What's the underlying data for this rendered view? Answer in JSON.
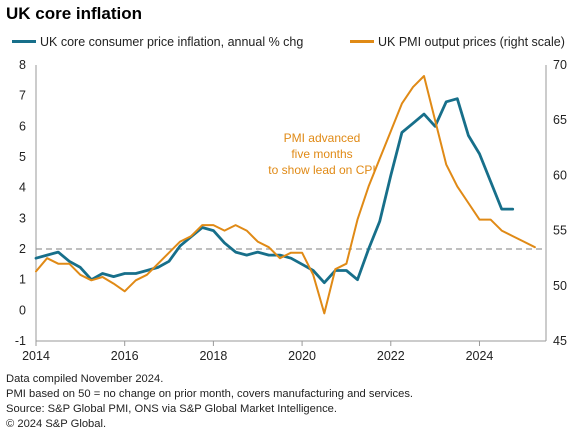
{
  "title": "UK core inflation",
  "legend": {
    "cpi_label": "UK core consumer price inflation, annual % chg",
    "pmi_label": "UK PMI output prices (right scale)"
  },
  "annotation": [
    "PMI advanced",
    "five months",
    "to show lead on CPI"
  ],
  "footer": {
    "line1": "Data compiled November 2024.",
    "line2": "PMI based on 50 = no change on prior month, covers manufacturing and services.",
    "line3": "Source: S&P Global PMI, ONS via S&P Global Market Intelligence.",
    "line4": "© 2024 S&P Global."
  },
  "colors": {
    "cpi": "#176F8A",
    "pmi": "#E08A16",
    "axis": "#999999",
    "reference": "#999999"
  },
  "chart_data": {
    "type": "line",
    "x_ticks": [
      "2014",
      "2016",
      "2018",
      "2020",
      "2022",
      "2024"
    ],
    "left_axis": {
      "ylim": [
        -1,
        8
      ],
      "ticks": [
        "-1",
        "0",
        "1",
        "2",
        "3",
        "4",
        "5",
        "6",
        "7",
        "8"
      ]
    },
    "right_axis": {
      "ylim": [
        45,
        70
      ],
      "ticks": [
        "45",
        "50",
        "55",
        "60",
        "65",
        "70"
      ]
    },
    "reference_line": {
      "axis": "left",
      "value": 2,
      "style": "dashed"
    },
    "series": [
      {
        "name": "UK core consumer price inflation, annual % chg",
        "axis": "left",
        "points": [
          [
            2014.0,
            1.7
          ],
          [
            2014.25,
            1.8
          ],
          [
            2014.5,
            1.9
          ],
          [
            2014.75,
            1.6
          ],
          [
            2015.0,
            1.4
          ],
          [
            2015.25,
            1.0
          ],
          [
            2015.5,
            1.2
          ],
          [
            2015.75,
            1.1
          ],
          [
            2016.0,
            1.2
          ],
          [
            2016.25,
            1.2
          ],
          [
            2016.5,
            1.3
          ],
          [
            2016.75,
            1.4
          ],
          [
            2017.0,
            1.6
          ],
          [
            2017.25,
            2.1
          ],
          [
            2017.5,
            2.4
          ],
          [
            2017.75,
            2.7
          ],
          [
            2018.0,
            2.6
          ],
          [
            2018.25,
            2.2
          ],
          [
            2018.5,
            1.9
          ],
          [
            2018.75,
            1.8
          ],
          [
            2019.0,
            1.9
          ],
          [
            2019.25,
            1.8
          ],
          [
            2019.5,
            1.8
          ],
          [
            2019.75,
            1.7
          ],
          [
            2020.0,
            1.5
          ],
          [
            2020.25,
            1.3
          ],
          [
            2020.5,
            0.9
          ],
          [
            2020.75,
            1.3
          ],
          [
            2021.0,
            1.3
          ],
          [
            2021.25,
            1.0
          ],
          [
            2021.5,
            2.0
          ],
          [
            2021.75,
            2.9
          ],
          [
            2022.0,
            4.4
          ],
          [
            2022.25,
            5.8
          ],
          [
            2022.5,
            6.1
          ],
          [
            2022.75,
            6.4
          ],
          [
            2023.0,
            6.0
          ],
          [
            2023.25,
            6.8
          ],
          [
            2023.5,
            6.9
          ],
          [
            2023.75,
            5.7
          ],
          [
            2024.0,
            5.1
          ],
          [
            2024.25,
            4.2
          ],
          [
            2024.5,
            3.3
          ],
          [
            2024.75,
            3.3
          ]
        ]
      },
      {
        "name": "UK PMI output prices (right scale)",
        "axis": "right",
        "points": [
          [
            2014.0,
            51.3
          ],
          [
            2014.25,
            52.5
          ],
          [
            2014.5,
            52.0
          ],
          [
            2014.75,
            52.0
          ],
          [
            2015.0,
            51.0
          ],
          [
            2015.25,
            50.5
          ],
          [
            2015.5,
            50.8
          ],
          [
            2015.75,
            50.2
          ],
          [
            2016.0,
            49.5
          ],
          [
            2016.25,
            50.5
          ],
          [
            2016.5,
            51.0
          ],
          [
            2016.75,
            52.0
          ],
          [
            2017.0,
            53.0
          ],
          [
            2017.25,
            54.0
          ],
          [
            2017.5,
            54.5
          ],
          [
            2017.75,
            55.5
          ],
          [
            2018.0,
            55.5
          ],
          [
            2018.25,
            55.0
          ],
          [
            2018.5,
            55.5
          ],
          [
            2018.75,
            55.0
          ],
          [
            2019.0,
            54.0
          ],
          [
            2019.25,
            53.5
          ],
          [
            2019.5,
            52.5
          ],
          [
            2019.75,
            53.0
          ],
          [
            2020.0,
            53.0
          ],
          [
            2020.25,
            51.0
          ],
          [
            2020.5,
            47.5
          ],
          [
            2020.75,
            51.5
          ],
          [
            2021.0,
            52.0
          ],
          [
            2021.25,
            56.0
          ],
          [
            2021.5,
            59.0
          ],
          [
            2021.75,
            61.5
          ],
          [
            2022.0,
            64.0
          ],
          [
            2022.25,
            66.5
          ],
          [
            2022.5,
            68.0
          ],
          [
            2022.75,
            69.0
          ],
          [
            2023.0,
            65.0
          ],
          [
            2023.25,
            61.0
          ],
          [
            2023.5,
            59.0
          ],
          [
            2023.75,
            57.5
          ],
          [
            2024.0,
            56.0
          ],
          [
            2024.25,
            56.0
          ],
          [
            2024.5,
            55.0
          ],
          [
            2024.75,
            54.5
          ],
          [
            2025.0,
            54.0
          ],
          [
            2025.25,
            53.5
          ]
        ]
      }
    ]
  }
}
